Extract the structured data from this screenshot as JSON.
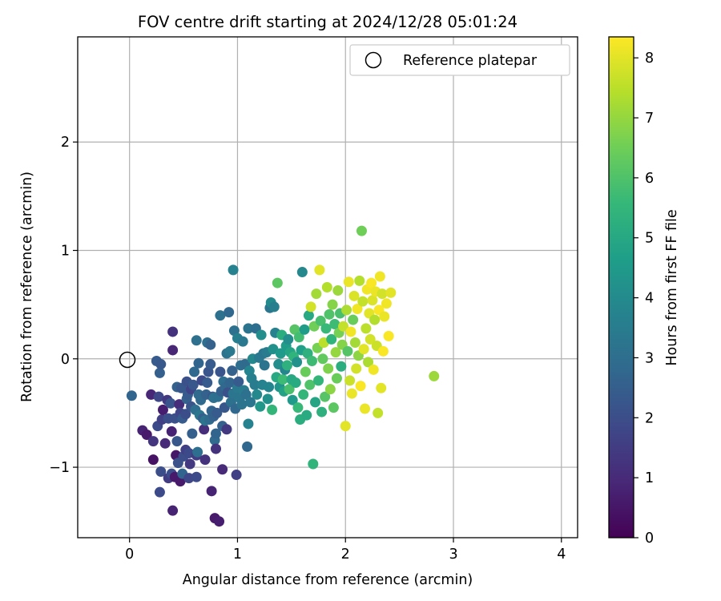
{
  "chart_data": {
    "type": "scatter",
    "title": "FOV centre drift starting at 2024/12/28 05:01:24",
    "xlabel": "Angular distance from reference (arcmin)",
    "ylabel": "Rotation from reference (arcmin)",
    "xlim": [
      -0.48,
      4.15
    ],
    "ylim": [
      -1.65,
      2.97
    ],
    "xticks": [
      0,
      1,
      2,
      3,
      4
    ],
    "yticks": [
      -1,
      0,
      1,
      2
    ],
    "xtick_labels": [
      "0",
      "1",
      "2",
      "3",
      "4"
    ],
    "ytick_labels": [
      "−1",
      "0",
      "1",
      "2"
    ],
    "grid": true,
    "legend": {
      "position": "top-right",
      "entries": [
        {
          "label": "Reference platepar",
          "marker": "open-circle"
        }
      ]
    },
    "reference_point": {
      "x": 0,
      "y": 0
    },
    "colorbar": {
      "label": "Hours from first FF file",
      "range": [
        0,
        8.35
      ],
      "ticks": [
        0,
        1,
        2,
        3,
        4,
        5,
        6,
        7,
        8
      ],
      "colormap": "viridis",
      "colors": [
        "#440154",
        "#482878",
        "#3e4989",
        "#31688e",
        "#26828e",
        "#1f9e89",
        "#35b779",
        "#6ece58",
        "#b5de2b",
        "#fde725"
      ]
    },
    "points": [
      {
        "x": 0.02,
        "y": -0.34,
        "c": 2.7
      },
      {
        "x": 0.12,
        "y": -0.66,
        "c": 0.8
      },
      {
        "x": 0.16,
        "y": -0.7,
        "c": 0.6
      },
      {
        "x": 0.2,
        "y": -0.33,
        "c": 0.9
      },
      {
        "x": 0.22,
        "y": -0.76,
        "c": 1.3
      },
      {
        "x": 0.22,
        "y": -0.93,
        "c": 0.4
      },
      {
        "x": 0.25,
        "y": -0.02,
        "c": 2.4
      },
      {
        "x": 0.26,
        "y": -0.62,
        "c": 1.9
      },
      {
        "x": 0.27,
        "y": -0.35,
        "c": 1.8
      },
      {
        "x": 0.28,
        "y": -0.13,
        "c": 2.5
      },
      {
        "x": 0.28,
        "y": -1.23,
        "c": 1.9
      },
      {
        "x": 0.29,
        "y": -0.05,
        "c": 2.3
      },
      {
        "x": 0.29,
        "y": -1.04,
        "c": 2.0
      },
      {
        "x": 0.3,
        "y": -0.56,
        "c": 1.6
      },
      {
        "x": 0.31,
        "y": -0.47,
        "c": 0.7
      },
      {
        "x": 0.33,
        "y": -0.78,
        "c": 1.0
      },
      {
        "x": 0.35,
        "y": -0.38,
        "c": 1.4
      },
      {
        "x": 0.36,
        "y": -0.55,
        "c": 2.0
      },
      {
        "x": 0.36,
        "y": -1.1,
        "c": 1.5
      },
      {
        "x": 0.38,
        "y": -0.41,
        "c": 2.2
      },
      {
        "x": 0.39,
        "y": -0.67,
        "c": 0.8
      },
      {
        "x": 0.39,
        "y": -1.06,
        "c": 2.0
      },
      {
        "x": 0.4,
        "y": 0.08,
        "c": 0.9
      },
      {
        "x": 0.4,
        "y": 0.25,
        "c": 1.2
      },
      {
        "x": 0.4,
        "y": -1.4,
        "c": 0.8
      },
      {
        "x": 0.42,
        "y": -0.55,
        "c": 2.1
      },
      {
        "x": 0.42,
        "y": -1.09,
        "c": 0.6
      },
      {
        "x": 0.43,
        "y": -0.89,
        "c": 0.5
      },
      {
        "x": 0.44,
        "y": -0.26,
        "c": 2.6
      },
      {
        "x": 0.44,
        "y": -0.76,
        "c": 2.3
      },
      {
        "x": 0.45,
        "y": -0.96,
        "c": 2.1
      },
      {
        "x": 0.46,
        "y": -0.42,
        "c": 1.1
      },
      {
        "x": 0.47,
        "y": -0.5,
        "c": 1.8
      },
      {
        "x": 0.47,
        "y": -1.13,
        "c": 0.6
      },
      {
        "x": 0.48,
        "y": -0.27,
        "c": 2.3
      },
      {
        "x": 0.49,
        "y": -0.55,
        "c": 2.4
      },
      {
        "x": 0.49,
        "y": -1.06,
        "c": 2.7
      },
      {
        "x": 0.5,
        "y": -0.9,
        "c": 2.0
      },
      {
        "x": 0.52,
        "y": -0.51,
        "c": 2.0
      },
      {
        "x": 0.52,
        "y": -0.84,
        "c": 1.6
      },
      {
        "x": 0.53,
        "y": -0.37,
        "c": 2.6
      },
      {
        "x": 0.53,
        "y": -0.21,
        "c": 2.1
      },
      {
        "x": 0.54,
        "y": -0.33,
        "c": 2.4
      },
      {
        "x": 0.55,
        "y": -0.87,
        "c": 1.9
      },
      {
        "x": 0.55,
        "y": -1.1,
        "c": 1.8
      },
      {
        "x": 0.56,
        "y": -0.97,
        "c": 1.4
      },
      {
        "x": 0.57,
        "y": -0.44,
        "c": 2.2
      },
      {
        "x": 0.57,
        "y": -0.28,
        "c": 1.7
      },
      {
        "x": 0.58,
        "y": -0.69,
        "c": 2.5
      },
      {
        "x": 0.59,
        "y": -0.24,
        "c": 2.3
      },
      {
        "x": 0.6,
        "y": -0.12,
        "c": 2.8
      },
      {
        "x": 0.61,
        "y": -0.47,
        "c": 3.0
      },
      {
        "x": 0.62,
        "y": 0.17,
        "c": 3.1
      },
      {
        "x": 0.62,
        "y": -0.89,
        "c": 1.5
      },
      {
        "x": 0.62,
        "y": -1.09,
        "c": 1.9
      },
      {
        "x": 0.63,
        "y": -0.86,
        "c": 3.0
      },
      {
        "x": 0.64,
        "y": -0.04,
        "c": 2.7
      },
      {
        "x": 0.64,
        "y": -0.33,
        "c": 2.9
      },
      {
        "x": 0.65,
        "y": -0.52,
        "c": 3.3
      },
      {
        "x": 0.66,
        "y": -0.38,
        "c": 2.9
      },
      {
        "x": 0.67,
        "y": -0.2,
        "c": 1.9
      },
      {
        "x": 0.68,
        "y": -0.55,
        "c": 2.5
      },
      {
        "x": 0.69,
        "y": -0.65,
        "c": 1.1
      },
      {
        "x": 0.7,
        "y": -0.93,
        "c": 1.2
      },
      {
        "x": 0.7,
        "y": -0.57,
        "c": 3.2
      },
      {
        "x": 0.71,
        "y": -0.33,
        "c": 2.6
      },
      {
        "x": 0.72,
        "y": -0.22,
        "c": 2.4
      },
      {
        "x": 0.72,
        "y": 0.15,
        "c": 3.0
      },
      {
        "x": 0.73,
        "y": -0.12,
        "c": 2.2
      },
      {
        "x": 0.74,
        "y": -0.56,
        "c": 2.9
      },
      {
        "x": 0.75,
        "y": 0.13,
        "c": 2.6
      },
      {
        "x": 0.75,
        "y": -0.05,
        "c": 2.4
      },
      {
        "x": 0.76,
        "y": -0.48,
        "c": 2.7
      },
      {
        "x": 0.76,
        "y": -1.22,
        "c": 0.8
      },
      {
        "x": 0.77,
        "y": -0.35,
        "c": 2.2
      },
      {
        "x": 0.78,
        "y": -0.36,
        "c": 3.1
      },
      {
        "x": 0.78,
        "y": -0.53,
        "c": 2.6
      },
      {
        "x": 0.79,
        "y": -1.47,
        "c": 0.6
      },
      {
        "x": 0.79,
        "y": -0.75,
        "c": 2.9
      },
      {
        "x": 0.8,
        "y": -0.83,
        "c": 1.2
      },
      {
        "x": 0.8,
        "y": -0.69,
        "c": 2.7
      },
      {
        "x": 0.81,
        "y": -0.5,
        "c": 2.4
      },
      {
        "x": 0.82,
        "y": -0.35,
        "c": 3.0
      },
      {
        "x": 0.83,
        "y": -1.5,
        "c": 0.7
      },
      {
        "x": 0.84,
        "y": 0.4,
        "c": 3.1
      },
      {
        "x": 0.84,
        "y": -0.12,
        "c": 2.2
      },
      {
        "x": 0.85,
        "y": -0.3,
        "c": 2.5
      },
      {
        "x": 0.86,
        "y": -0.62,
        "c": 2.6
      },
      {
        "x": 0.86,
        "y": -1.02,
        "c": 1.0
      },
      {
        "x": 0.87,
        "y": -0.21,
        "c": 3.0
      },
      {
        "x": 0.88,
        "y": -0.45,
        "c": 2.3
      },
      {
        "x": 0.89,
        "y": -0.26,
        "c": 2.8
      },
      {
        "x": 0.9,
        "y": -0.65,
        "c": 1.4
      },
      {
        "x": 0.9,
        "y": 0.05,
        "c": 3.2
      },
      {
        "x": 0.91,
        "y": -0.31,
        "c": 2.1
      },
      {
        "x": 0.92,
        "y": 0.43,
        "c": 2.8
      },
      {
        "x": 0.93,
        "y": -0.22,
        "c": 2.7
      },
      {
        "x": 0.93,
        "y": 0.07,
        "c": 3.4
      },
      {
        "x": 0.94,
        "y": -0.4,
        "c": 3.1
      },
      {
        "x": 0.95,
        "y": -0.11,
        "c": 2.6
      },
      {
        "x": 0.96,
        "y": -0.32,
        "c": 3.3
      },
      {
        "x": 0.96,
        "y": 0.82,
        "c": 3.7
      },
      {
        "x": 0.97,
        "y": 0.26,
        "c": 3.1
      },
      {
        "x": 0.98,
        "y": -0.46,
        "c": 2.8
      },
      {
        "x": 0.99,
        "y": -1.07,
        "c": 1.6
      },
      {
        "x": 1.0,
        "y": -0.27,
        "c": 3.4
      },
      {
        "x": 1.0,
        "y": 0.19,
        "c": 3.6
      },
      {
        "x": 1.01,
        "y": -0.21,
        "c": 2.4
      },
      {
        "x": 1.02,
        "y": -0.36,
        "c": 3.3
      },
      {
        "x": 1.03,
        "y": -0.06,
        "c": 3.0
      },
      {
        "x": 1.04,
        "y": -0.42,
        "c": 3.2
      },
      {
        "x": 1.05,
        "y": 0.16,
        "c": 3.4
      },
      {
        "x": 1.06,
        "y": -0.29,
        "c": 3.5
      },
      {
        "x": 1.07,
        "y": -0.05,
        "c": 2.9
      },
      {
        "x": 1.08,
        "y": -0.33,
        "c": 3.1
      },
      {
        "x": 1.09,
        "y": -0.81,
        "c": 2.8
      },
      {
        "x": 1.1,
        "y": -0.6,
        "c": 3.7
      },
      {
        "x": 1.1,
        "y": 0.28,
        "c": 3.2
      },
      {
        "x": 1.11,
        "y": -0.11,
        "c": 3.8
      },
      {
        "x": 1.12,
        "y": -0.4,
        "c": 3.3
      },
      {
        "x": 1.13,
        "y": -0.18,
        "c": 3.6
      },
      {
        "x": 1.14,
        "y": 0.0,
        "c": 3.9
      },
      {
        "x": 1.16,
        "y": -0.24,
        "c": 3.5
      },
      {
        "x": 1.17,
        "y": 0.28,
        "c": 3.0
      },
      {
        "x": 1.18,
        "y": -0.33,
        "c": 3.9
      },
      {
        "x": 1.2,
        "y": 0.01,
        "c": 3.4
      },
      {
        "x": 1.21,
        "y": -0.44,
        "c": 4.4
      },
      {
        "x": 1.22,
        "y": 0.22,
        "c": 4.1
      },
      {
        "x": 1.23,
        "y": -0.24,
        "c": 3.7
      },
      {
        "x": 1.24,
        "y": 0.05,
        "c": 3.3
      },
      {
        "x": 1.25,
        "y": -0.06,
        "c": 3.2
      },
      {
        "x": 1.27,
        "y": 0.06,
        "c": 3.5
      },
      {
        "x": 1.28,
        "y": -0.37,
        "c": 4.2
      },
      {
        "x": 1.29,
        "y": -0.26,
        "c": 3.8
      },
      {
        "x": 1.3,
        "y": 0.47,
        "c": 3.3
      },
      {
        "x": 1.31,
        "y": 0.52,
        "c": 4.0
      },
      {
        "x": 1.32,
        "y": -0.47,
        "c": 5.5
      },
      {
        "x": 1.33,
        "y": 0.09,
        "c": 4.2
      },
      {
        "x": 1.34,
        "y": 0.48,
        "c": 3.6
      },
      {
        "x": 1.35,
        "y": 0.24,
        "c": 3.7
      },
      {
        "x": 1.36,
        "y": -0.17,
        "c": 5.0
      },
      {
        "x": 1.37,
        "y": 0.7,
        "c": 6.2
      },
      {
        "x": 1.38,
        "y": -0.05,
        "c": 4.1
      },
      {
        "x": 1.39,
        "y": -0.26,
        "c": 4.3
      },
      {
        "x": 1.4,
        "y": 0.05,
        "c": 4.5
      },
      {
        "x": 1.41,
        "y": 0.22,
        "c": 5.2
      },
      {
        "x": 1.42,
        "y": -0.19,
        "c": 5.7
      },
      {
        "x": 1.43,
        "y": -0.3,
        "c": 4.8
      },
      {
        "x": 1.44,
        "y": -0.1,
        "c": 3.8
      },
      {
        "x": 1.45,
        "y": 0.12,
        "c": 4.6
      },
      {
        "x": 1.46,
        "y": -0.06,
        "c": 5.3
      },
      {
        "x": 1.47,
        "y": 0.18,
        "c": 4.1
      },
      {
        "x": 1.48,
        "y": -0.28,
        "c": 5.9
      },
      {
        "x": 1.49,
        "y": 0.06,
        "c": 4.9
      },
      {
        "x": 1.5,
        "y": -0.19,
        "c": 5.0
      },
      {
        "x": 1.51,
        "y": -0.38,
        "c": 4.5
      },
      {
        "x": 1.52,
        "y": 0.02,
        "c": 5.4
      },
      {
        "x": 1.53,
        "y": 0.27,
        "c": 6.1
      },
      {
        "x": 1.54,
        "y": -0.22,
        "c": 5.1
      },
      {
        "x": 1.55,
        "y": -0.03,
        "c": 4.2
      },
      {
        "x": 1.56,
        "y": -0.45,
        "c": 5.6
      },
      {
        "x": 1.57,
        "y": 0.2,
        "c": 5.8
      },
      {
        "x": 1.58,
        "y": -0.56,
        "c": 5.2
      },
      {
        "x": 1.59,
        "y": 0.08,
        "c": 4.7
      },
      {
        "x": 1.6,
        "y": 0.8,
        "c": 3.9
      },
      {
        "x": 1.61,
        "y": -0.33,
        "c": 5.5
      },
      {
        "x": 1.62,
        "y": 0.27,
        "c": 4.6
      },
      {
        "x": 1.63,
        "y": -0.12,
        "c": 6.4
      },
      {
        "x": 1.64,
        "y": -0.52,
        "c": 5.1
      },
      {
        "x": 1.65,
        "y": 0.05,
        "c": 5.3
      },
      {
        "x": 1.66,
        "y": 0.4,
        "c": 5.0
      },
      {
        "x": 1.67,
        "y": -0.24,
        "c": 6.0
      },
      {
        "x": 1.68,
        "y": 0.48,
        "c": 7.8
      },
      {
        "x": 1.69,
        "y": -0.02,
        "c": 5.7
      },
      {
        "x": 1.7,
        "y": -0.97,
        "c": 5.4
      },
      {
        "x": 1.71,
        "y": 0.3,
        "c": 6.5
      },
      {
        "x": 1.72,
        "y": -0.4,
        "c": 4.9
      },
      {
        "x": 1.73,
        "y": 0.6,
        "c": 7.2
      },
      {
        "x": 1.74,
        "y": 0.1,
        "c": 6.6
      },
      {
        "x": 1.75,
        "y": -0.2,
        "c": 5.5
      },
      {
        "x": 1.76,
        "y": 0.82,
        "c": 8.0
      },
      {
        "x": 1.77,
        "y": 0.35,
        "c": 5.9
      },
      {
        "x": 1.78,
        "y": -0.49,
        "c": 5.3
      },
      {
        "x": 1.79,
        "y": 0.0,
        "c": 6.3
      },
      {
        "x": 1.8,
        "y": 0.15,
        "c": 7.5
      },
      {
        "x": 1.81,
        "y": -0.35,
        "c": 6.1
      },
      {
        "x": 1.82,
        "y": 0.28,
        "c": 5.6
      },
      {
        "x": 1.83,
        "y": 0.66,
        "c": 7.4
      },
      {
        "x": 1.84,
        "y": -0.09,
        "c": 6.7
      },
      {
        "x": 1.85,
        "y": 0.41,
        "c": 6.0
      },
      {
        "x": 1.86,
        "y": -0.28,
        "c": 6.9
      },
      {
        "x": 1.87,
        "y": 0.18,
        "c": 5.4
      },
      {
        "x": 1.88,
        "y": 0.5,
        "c": 6.8
      },
      {
        "x": 1.89,
        "y": -0.45,
        "c": 6.2
      },
      {
        "x": 1.9,
        "y": 0.32,
        "c": 5.7
      },
      {
        "x": 1.91,
        "y": 0.06,
        "c": 7.0
      },
      {
        "x": 1.92,
        "y": -0.18,
        "c": 6.4
      },
      {
        "x": 1.93,
        "y": 0.63,
        "c": 7.1
      },
      {
        "x": 1.94,
        "y": 0.24,
        "c": 6.6
      },
      {
        "x": 1.95,
        "y": 0.42,
        "c": 5.9
      },
      {
        "x": 1.96,
        "y": -0.07,
        "c": 5.2
      },
      {
        "x": 1.97,
        "y": 0.13,
        "c": 6.8
      },
      {
        "x": 1.98,
        "y": 0.3,
        "c": 7.6
      },
      {
        "x": 2.0,
        "y": -0.62,
        "c": 8.0
      },
      {
        "x": 2.01,
        "y": 0.45,
        "c": 7.3
      },
      {
        "x": 2.02,
        "y": 0.07,
        "c": 6.1
      },
      {
        "x": 2.03,
        "y": 0.71,
        "c": 8.1
      },
      {
        "x": 2.04,
        "y": -0.2,
        "c": 7.7
      },
      {
        "x": 2.05,
        "y": 0.25,
        "c": 8.2
      },
      {
        "x": 2.06,
        "y": -0.32,
        "c": 8.1
      },
      {
        "x": 2.07,
        "y": 0.36,
        "c": 6.4
      },
      {
        "x": 2.08,
        "y": 0.58,
        "c": 7.9
      },
      {
        "x": 2.09,
        "y": 0.15,
        "c": 7.2
      },
      {
        "x": 2.1,
        "y": -0.09,
        "c": 7.8
      },
      {
        "x": 2.11,
        "y": 0.46,
        "c": 8.2
      },
      {
        "x": 2.12,
        "y": 0.03,
        "c": 6.9
      },
      {
        "x": 2.13,
        "y": 0.72,
        "c": 7.4
      },
      {
        "x": 2.14,
        "y": -0.25,
        "c": 8.3
      },
      {
        "x": 2.15,
        "y": 1.18,
        "c": 6.5
      },
      {
        "x": 2.16,
        "y": 0.53,
        "c": 7.6
      },
      {
        "x": 2.17,
        "y": 0.09,
        "c": 8.0
      },
      {
        "x": 2.18,
        "y": -0.46,
        "c": 8.1
      },
      {
        "x": 2.19,
        "y": 0.28,
        "c": 7.5
      },
      {
        "x": 2.2,
        "y": 0.64,
        "c": 8.2
      },
      {
        "x": 2.21,
        "y": -0.03,
        "c": 7.3
      },
      {
        "x": 2.22,
        "y": 0.42,
        "c": 8.0
      },
      {
        "x": 2.23,
        "y": 0.18,
        "c": 7.8
      },
      {
        "x": 2.24,
        "y": 0.7,
        "c": 8.3
      },
      {
        "x": 2.25,
        "y": 0.54,
        "c": 7.9
      },
      {
        "x": 2.26,
        "y": -0.1,
        "c": 8.2
      },
      {
        "x": 2.27,
        "y": 0.36,
        "c": 7.4
      },
      {
        "x": 2.28,
        "y": 0.62,
        "c": 8.1
      },
      {
        "x": 2.29,
        "y": 0.12,
        "c": 7.7
      },
      {
        "x": 2.3,
        "y": -0.5,
        "c": 7.6
      },
      {
        "x": 2.31,
        "y": 0.45,
        "c": 8.3
      },
      {
        "x": 2.32,
        "y": 0.76,
        "c": 8.2
      },
      {
        "x": 2.33,
        "y": -0.27,
        "c": 8.0
      },
      {
        "x": 2.34,
        "y": 0.6,
        "c": 7.8
      },
      {
        "x": 2.35,
        "y": 0.07,
        "c": 8.3
      },
      {
        "x": 2.36,
        "y": 0.39,
        "c": 8.1
      },
      {
        "x": 2.38,
        "y": 0.51,
        "c": 8.2
      },
      {
        "x": 2.4,
        "y": 0.21,
        "c": 8.3
      },
      {
        "x": 2.42,
        "y": 0.61,
        "c": 8.0
      },
      {
        "x": 2.82,
        "y": -0.16,
        "c": 7.1
      }
    ]
  }
}
